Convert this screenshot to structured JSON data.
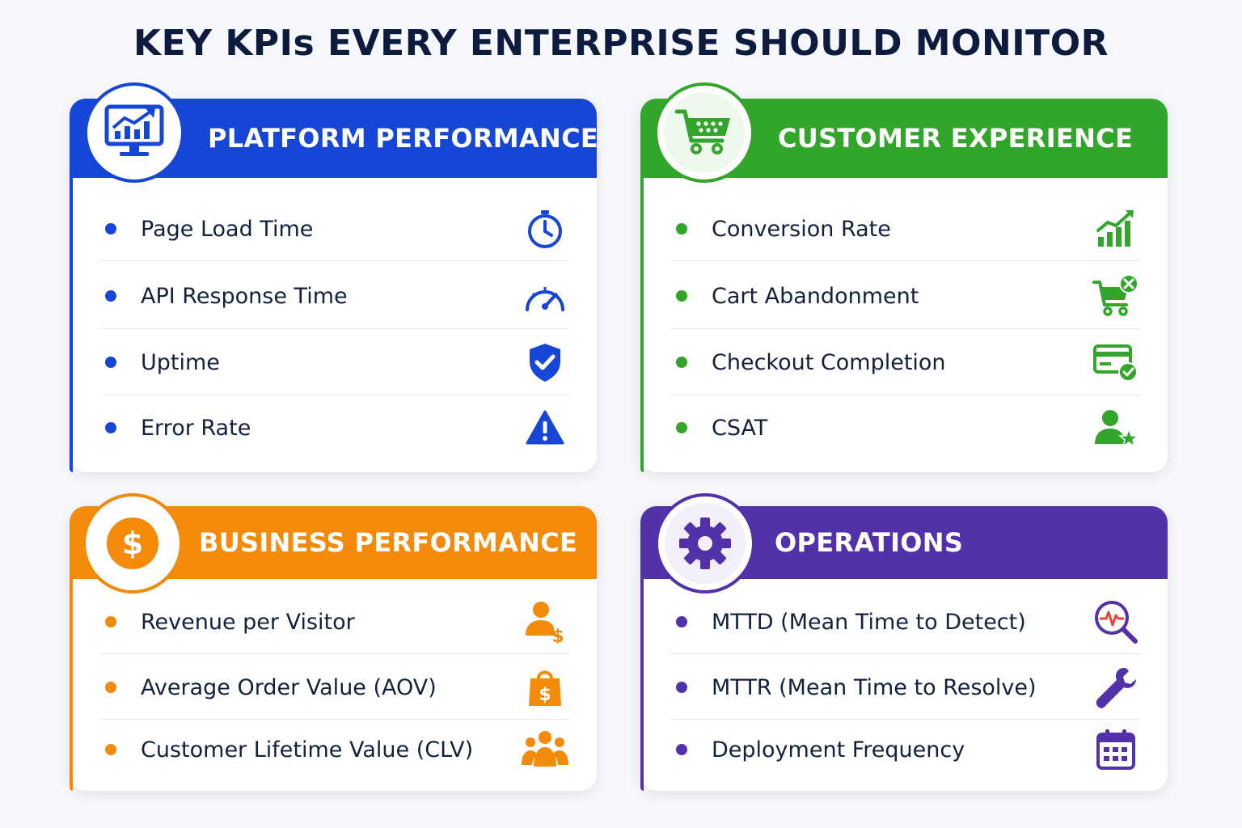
{
  "title": "KEY KPIs EVERY ENTERPRISE SHOULD MONITOR",
  "colors": {
    "blue": "#1646d6",
    "green": "#32a52b",
    "orange": "#f38a0a",
    "purple": "#5331a8"
  },
  "cards": [
    {
      "title": "PLATFORM PERFORMANCE",
      "badge_icon": "monitor-chart-icon",
      "items": [
        {
          "label": "Page Load Time",
          "icon": "stopwatch-icon"
        },
        {
          "label": "API Response Time",
          "icon": "speedometer-icon"
        },
        {
          "label": "Uptime",
          "icon": "shield-check-icon"
        },
        {
          "label": "Error Rate",
          "icon": "warning-icon"
        }
      ]
    },
    {
      "title": "CUSTOMER EXPERIENCE",
      "badge_icon": "shopping-cart-icon",
      "items": [
        {
          "label": "Conversion Rate",
          "icon": "growth-chart-icon"
        },
        {
          "label": "Cart Abandonment",
          "icon": "cart-remove-icon"
        },
        {
          "label": "Checkout Completion",
          "icon": "card-check-icon"
        },
        {
          "label": "CSAT",
          "icon": "user-star-icon"
        }
      ]
    },
    {
      "title": "BUSINESS PERFORMANCE",
      "badge_icon": "dollar-coin-icon",
      "items": [
        {
          "label": "Revenue per Visitor",
          "icon": "user-dollar-icon"
        },
        {
          "label": "Average Order Value (AOV)",
          "icon": "shopping-bag-dollar-icon"
        },
        {
          "label": "Customer Lifetime Value (CLV)",
          "icon": "customer-group-icon"
        }
      ]
    },
    {
      "title": "OPERATIONS",
      "badge_icon": "gear-icon",
      "items": [
        {
          "label": "MTTD (Mean Time to Detect)",
          "icon": "magnifier-pulse-icon"
        },
        {
          "label": "MTTR (Mean Time to Resolve)",
          "icon": "wrench-icon"
        },
        {
          "label": "Deployment Frequency",
          "icon": "calendar-icon"
        }
      ]
    }
  ]
}
